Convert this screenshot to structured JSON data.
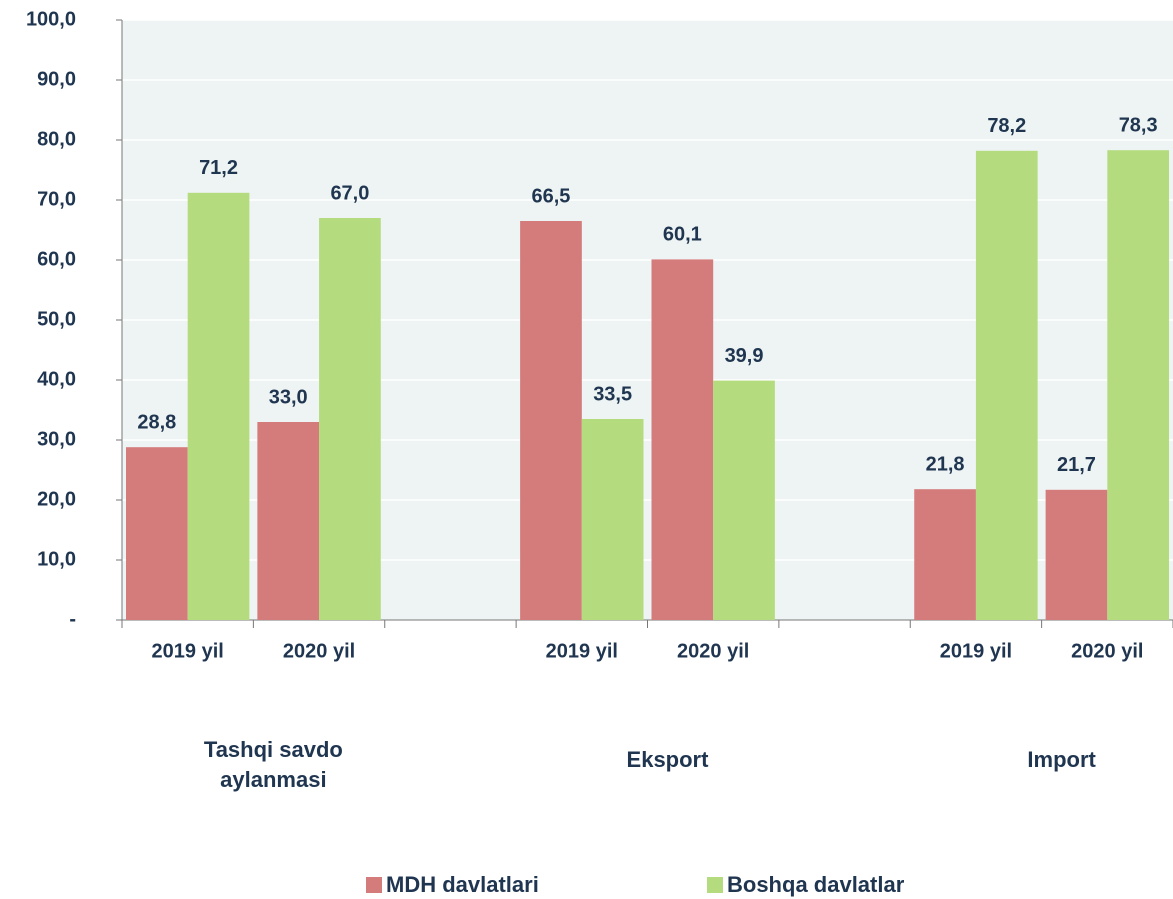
{
  "chart_data": {
    "type": "bar",
    "categories": [
      "2019 yil",
      "2020 yil",
      null,
      "2019 yil",
      "2020 yil",
      null,
      "2019 yil",
      "2020 yil"
    ],
    "groups": [
      "Tashqi savdo aylanmasi",
      "Eksport",
      "Import"
    ],
    "series": [
      {
        "name": "MDH davlatlari",
        "color": "#d47b7b",
        "values": [
          28.8,
          33.0,
          null,
          66.5,
          60.1,
          null,
          21.8,
          21.7
        ],
        "value_labels": [
          "28,8",
          "33,0",
          null,
          "66,5",
          "60,1",
          null,
          "21,8",
          "21,7"
        ]
      },
      {
        "name": "Boshqa davlatlar",
        "color": "#b4dc7e",
        "values": [
          71.2,
          67.0,
          null,
          33.5,
          39.9,
          null,
          78.2,
          78.3
        ],
        "value_labels": [
          "71,2",
          "67,0",
          null,
          "33,5",
          "39,9",
          null,
          "78,2",
          "78,3"
        ]
      }
    ],
    "ylim": [
      0,
      100
    ],
    "yticks": [
      {
        "value": 0,
        "label": "-"
      },
      {
        "value": 10,
        "label": "10,0"
      },
      {
        "value": 20,
        "label": "20,0"
      },
      {
        "value": 30,
        "label": "30,0"
      },
      {
        "value": 40,
        "label": "40,0"
      },
      {
        "value": 50,
        "label": "50,0"
      },
      {
        "value": 60,
        "label": "60,0"
      },
      {
        "value": 70,
        "label": "70,0"
      },
      {
        "value": 80,
        "label": "80,0"
      },
      {
        "value": 90,
        "label": "90,0"
      },
      {
        "value": 100,
        "label": "100,0"
      }
    ],
    "grid": true
  }
}
